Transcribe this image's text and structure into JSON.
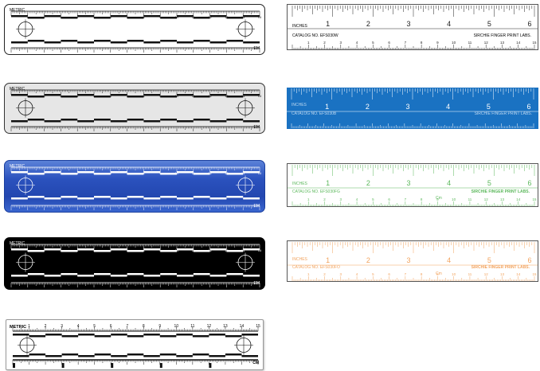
{
  "scale_rulers": [
    {
      "name": "white",
      "metric_label": "METRIC",
      "cm_label": "CM",
      "end_label": "EM",
      "numbers": [
        "1",
        "2",
        "3",
        "4",
        "5",
        "6",
        "7",
        "8",
        "9",
        "10",
        "11",
        "12",
        "13",
        "14",
        "15"
      ],
      "bg": "#ffffff",
      "fg": "#111111",
      "band": "#ffffff"
    },
    {
      "name": "gray",
      "metric_label": "METRIC",
      "cm_label": "CM",
      "end_label": "EM",
      "numbers": [
        "1",
        "2",
        "3",
        "4",
        "5",
        "6",
        "7",
        "8",
        "9",
        "10",
        "11",
        "12",
        "13",
        "14",
        "15"
      ],
      "bg": "#e6e6e6",
      "fg": "#111111",
      "band": "#f2f2f2"
    },
    {
      "name": "blue",
      "metric_label": "METRIC",
      "cm_label": "CM",
      "end_label": "EM",
      "numbers": [
        "1",
        "2",
        "3",
        "4",
        "5",
        "6",
        "7",
        "8",
        "9",
        "10",
        "11",
        "12",
        "13",
        "14",
        "15"
      ],
      "bg": "#2b52be",
      "fg": "#ffffff",
      "band": "#2347b0"
    },
    {
      "name": "black",
      "metric_label": "METRIC",
      "cm_label": "CM",
      "end_label": "EM",
      "numbers": [
        "1",
        "2",
        "3",
        "4",
        "5",
        "6",
        "7",
        "8",
        "9",
        "10",
        "11",
        "12",
        "13",
        "14",
        "15"
      ],
      "bg": "#000000",
      "fg": "#ffffff",
      "band": "#000000"
    },
    {
      "name": "white-bold",
      "metric_label": "METRIC",
      "cm_label": "CM",
      "end_label": "CM",
      "numbers": [
        "1",
        "2",
        "3",
        "4",
        "5",
        "6",
        "7",
        "8",
        "9",
        "10",
        "11",
        "12",
        "13",
        "14",
        "15"
      ],
      "bg": "#ffffff",
      "fg": "#111111",
      "band": "#ffffff"
    }
  ],
  "inch_rulers": [
    {
      "name": "white",
      "inches_label": "INCHES",
      "catalog": "CATALOG NO. EFS030W",
      "brand": "SIRCHIE FINGER PRINT LABS.",
      "numbers": [
        "1",
        "2",
        "3",
        "4",
        "5",
        "6"
      ],
      "cm_numbers": [
        "1",
        "2",
        "3",
        "4",
        "5",
        "6",
        "7",
        "8",
        "9",
        "10",
        "11",
        "12",
        "13",
        "14",
        "15"
      ],
      "bg": "#ffffff",
      "fg": "#222222"
    },
    {
      "name": "blue",
      "inches_label": "INCHES",
      "catalog": "CATALOG NO. EFS030B",
      "brand": "SIRCHIE FINGER PRINT LABS.",
      "numbers": [
        "1",
        "2",
        "3",
        "4",
        "5",
        "6"
      ],
      "cm_numbers": [],
      "bg": "#1a72c2",
      "fg": "#ffffff"
    },
    {
      "name": "green",
      "inches_label": "INCHES",
      "catalog": "CATALOG NO. EFS030FG",
      "brand": "SIRCHIE FINGER PRINT LABS.",
      "numbers": [
        "1",
        "2",
        "3",
        "4",
        "5",
        "6"
      ],
      "cm_numbers": [
        "1",
        "2",
        "3",
        "4",
        "5",
        "6",
        "7",
        "8",
        "9",
        "10",
        "11",
        "12",
        "13",
        "14",
        "15"
      ],
      "cm_label": "Cm",
      "bg": "#ffffff",
      "fg": "#5cb85c"
    },
    {
      "name": "orange",
      "inches_label": "INCHES",
      "catalog": "CATALOG NO. EFS030FO",
      "brand": "SIRCHIE FINGER PRINT LABS.",
      "numbers": [
        "1",
        "2",
        "3",
        "4",
        "5",
        "6"
      ],
      "cm_numbers": [
        "1",
        "2",
        "3",
        "4",
        "5",
        "6",
        "7",
        "8",
        "9",
        "10",
        "11",
        "12",
        "13",
        "14",
        "15"
      ],
      "cm_label": "Cm",
      "bg": "#ffffff",
      "fg": "#f2a35e"
    }
  ]
}
